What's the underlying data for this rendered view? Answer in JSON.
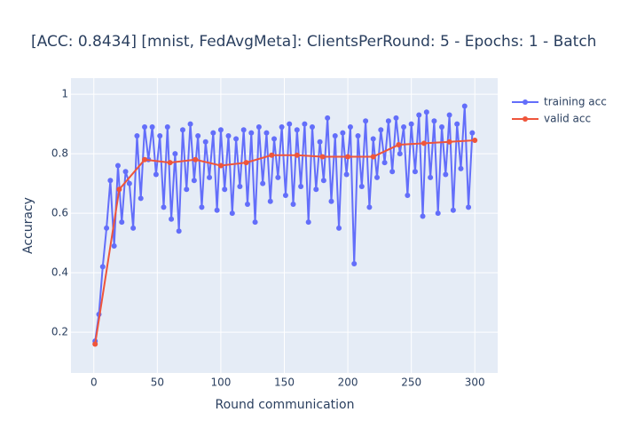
{
  "chart_data": {
    "type": "line",
    "title": "[ACC: 0.8434] [mnist, FedAvgMeta]: ClientsPerRound: 5 - Epochs: 1 - Batch",
    "x_label": "Round communication",
    "y_label": "Accuracy",
    "xlim": [
      -18,
      318
    ],
    "ylim": [
      0.063,
      1.054
    ],
    "xticks": [
      0,
      50,
      100,
      150,
      200,
      250,
      300
    ],
    "yticks": [
      0.2,
      0.4,
      0.6,
      0.8,
      1
    ],
    "grid": true,
    "legend": "top-right",
    "background": "#e5ecf6",
    "series": [
      {
        "name": "training acc",
        "color": "#636efa",
        "x": [
          1,
          4,
          7,
          10,
          13,
          16,
          19,
          22,
          25,
          28,
          31,
          34,
          37,
          40,
          43,
          46,
          49,
          52,
          55,
          58,
          61,
          64,
          67,
          70,
          73,
          76,
          79,
          82,
          85,
          88,
          91,
          94,
          97,
          100,
          103,
          106,
          109,
          112,
          115,
          118,
          121,
          124,
          127,
          130,
          133,
          136,
          139,
          142,
          145,
          148,
          151,
          154,
          157,
          160,
          163,
          166,
          169,
          172,
          175,
          178,
          181,
          184,
          187,
          190,
          193,
          196,
          199,
          202,
          205,
          208,
          211,
          214,
          217,
          220,
          223,
          226,
          229,
          232,
          235,
          238,
          241,
          244,
          247,
          250,
          253,
          256,
          259,
          262,
          265,
          268,
          271,
          274,
          277,
          280,
          283,
          286,
          289,
          292,
          295,
          298
        ],
        "values": [
          0.17,
          0.26,
          0.42,
          0.55,
          0.71,
          0.49,
          0.76,
          0.57,
          0.74,
          0.7,
          0.55,
          0.86,
          0.65,
          0.89,
          0.78,
          0.89,
          0.73,
          0.86,
          0.62,
          0.89,
          0.58,
          0.8,
          0.54,
          0.88,
          0.68,
          0.9,
          0.71,
          0.86,
          0.62,
          0.84,
          0.72,
          0.87,
          0.61,
          0.88,
          0.68,
          0.86,
          0.6,
          0.85,
          0.69,
          0.88,
          0.63,
          0.87,
          0.57,
          0.89,
          0.7,
          0.87,
          0.64,
          0.85,
          0.72,
          0.89,
          0.66,
          0.9,
          0.63,
          0.88,
          0.69,
          0.9,
          0.57,
          0.89,
          0.68,
          0.84,
          0.71,
          0.92,
          0.64,
          0.86,
          0.55,
          0.87,
          0.73,
          0.89,
          0.43,
          0.86,
          0.69,
          0.91,
          0.62,
          0.85,
          0.72,
          0.88,
          0.77,
          0.91,
          0.74,
          0.92,
          0.8,
          0.89,
          0.66,
          0.9,
          0.74,
          0.93,
          0.59,
          0.94,
          0.72,
          0.91,
          0.6,
          0.89,
          0.73,
          0.93,
          0.61,
          0.9,
          0.75,
          0.96,
          0.62,
          0.87
        ]
      },
      {
        "name": "valid acc",
        "color": "#ef553b",
        "x": [
          1,
          20,
          40,
          60,
          80,
          100,
          120,
          140,
          160,
          180,
          200,
          220,
          240,
          260,
          280,
          300
        ],
        "values": [
          0.16,
          0.68,
          0.78,
          0.77,
          0.78,
          0.76,
          0.77,
          0.795,
          0.795,
          0.79,
          0.79,
          0.79,
          0.83,
          0.835,
          0.84,
          0.845
        ]
      }
    ]
  }
}
